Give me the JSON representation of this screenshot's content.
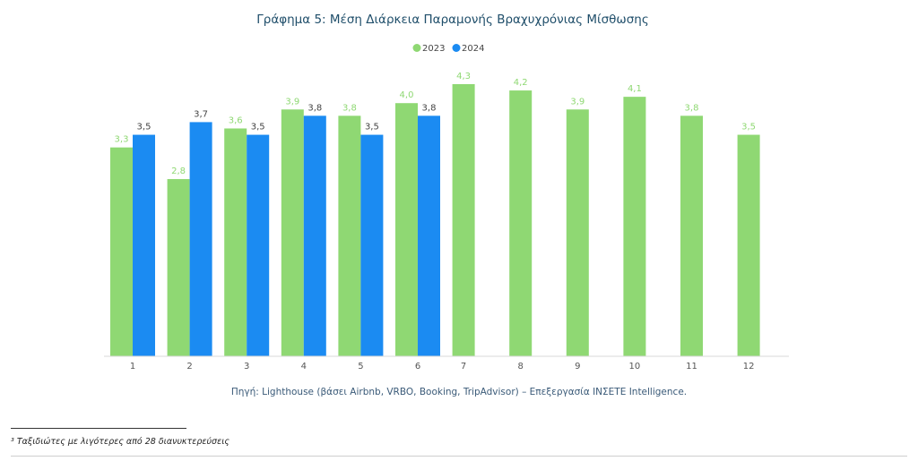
{
  "chart_data": {
    "type": "bar",
    "title": "Γράφημα 5: Μέση Διάρκεια Παραμονής Βραχυχρόνιας Μίσθωσης",
    "categories": [
      "1",
      "2",
      "3",
      "4",
      "5",
      "6",
      "7",
      "8",
      "9",
      "10",
      "11",
      "12"
    ],
    "series": [
      {
        "name": "2023",
        "color": "#8fd873",
        "values": [
          3.3,
          2.8,
          3.6,
          3.9,
          3.8,
          4.0,
          4.3,
          4.2,
          3.9,
          4.1,
          3.8,
          3.5
        ],
        "labels": [
          "3,3",
          "2,8",
          "3,6",
          "3,9",
          "3,8",
          "4,0",
          "4,3",
          "4,2",
          "3,9",
          "4,1",
          "3,8",
          "3,5"
        ]
      },
      {
        "name": "2024",
        "color": "#1b8bf2",
        "values": [
          3.5,
          3.7,
          3.5,
          3.8,
          3.5,
          3.8,
          null,
          null,
          null,
          null,
          null,
          null
        ],
        "labels": [
          "3,5",
          "3,7",
          "3,5",
          "3,8",
          "3,5",
          "3,8",
          null,
          null,
          null,
          null,
          null,
          null
        ]
      }
    ],
    "xlabel": "",
    "ylabel": "",
    "ylim": [
      0,
      4.3
    ],
    "grid": false,
    "legend": "top-center",
    "label_colors": {
      "2023": "#8fd873",
      "2024": "#444444"
    }
  },
  "source": "Πηγή: Lighthouse (βάσει Airbnb, VRBO, Booking, TripAdvisor) – Επεξεργασία INΣΕΤΕ Intelligence.",
  "footnote": "³ Ταξιδιώτες με λιγότερες από 28 διανυκτερεύσεις"
}
